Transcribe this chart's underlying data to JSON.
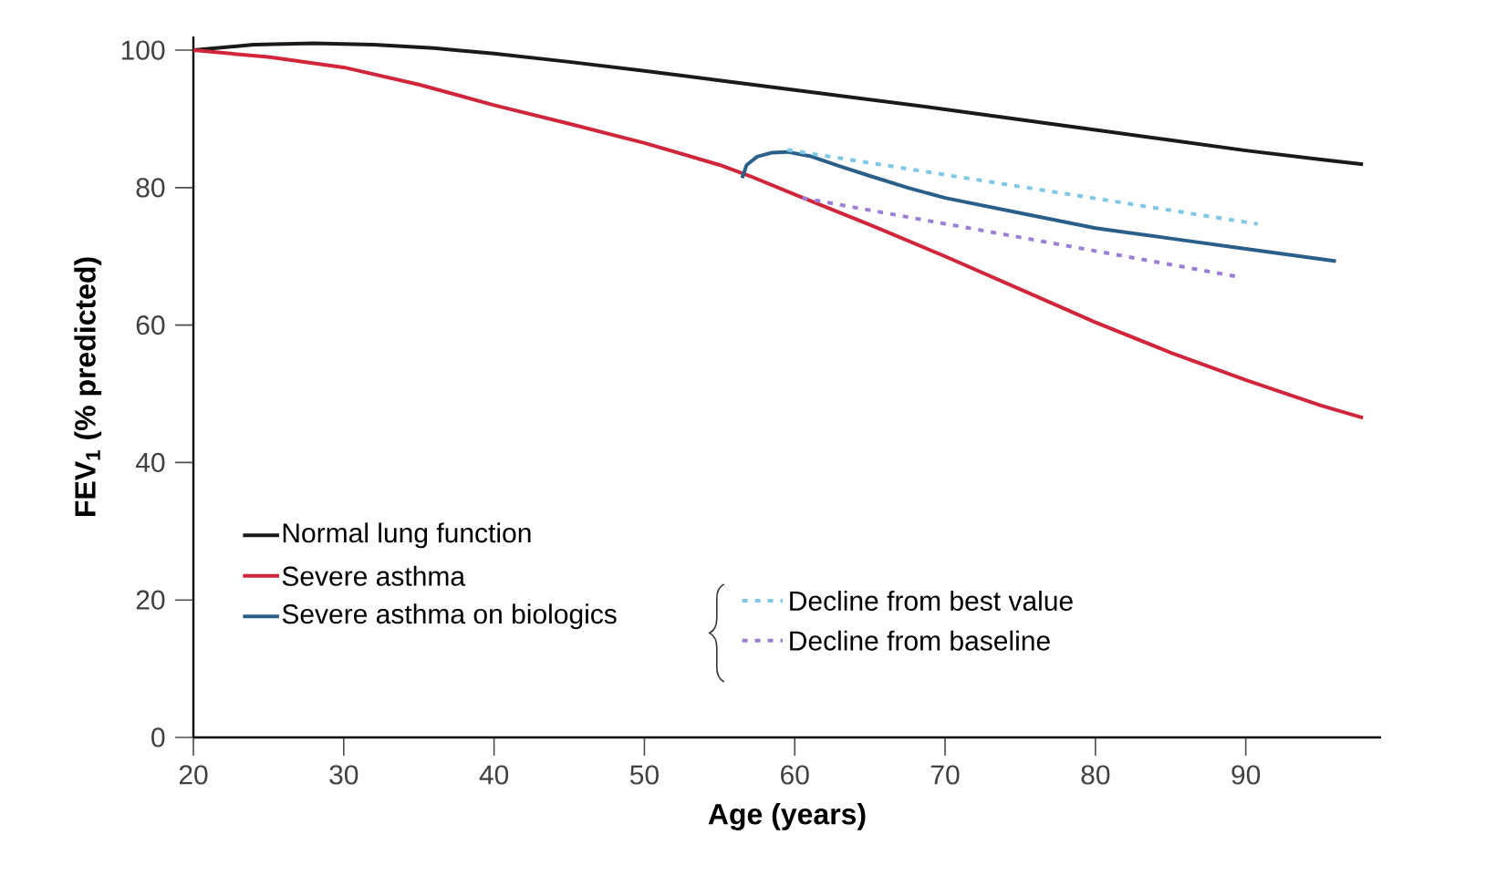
{
  "chart_data": {
    "type": "line",
    "xlabel": "Age (years)",
    "ylabel": "FEV$_{1}$ (% predicted)",
    "xlim": [
      20,
      99
    ],
    "ylim": [
      0,
      102
    ],
    "xticks": [
      20,
      30,
      40,
      50,
      60,
      70,
      80,
      90
    ],
    "yticks": [
      0,
      20,
      40,
      60,
      80,
      100
    ],
    "legend": "bottom left",
    "grid": false,
    "series": [
      {
        "name": "Normal lung function",
        "color": "#1a1a1a",
        "x": [
          20,
          24,
          28,
          32,
          36,
          40,
          45,
          50,
          55,
          60,
          65,
          70,
          75,
          80,
          85,
          90,
          95,
          97.8
        ],
        "values": [
          100,
          100.8,
          101,
          100.8,
          100.3,
          99.5,
          98.3,
          97,
          95.6,
          94.2,
          92.8,
          91.4,
          89.9,
          88.4,
          86.9,
          85.4,
          84.1,
          83.4
        ]
      },
      {
        "name": "Severe asthma",
        "color": "#d0253a",
        "x": [
          20,
          25,
          30,
          35,
          40,
          45,
          50,
          55,
          57,
          60,
          65,
          70,
          75,
          80,
          85,
          90,
          95,
          97.8
        ],
        "values": [
          100,
          99,
          97.5,
          95,
          92,
          89.3,
          86.5,
          83.3,
          81.7,
          79,
          74.6,
          70,
          65.2,
          60.4,
          56,
          52,
          48.3,
          46.5
        ]
      },
      {
        "name": "Severe asthma on biologics",
        "color": "#2a5f8a",
        "x": [
          56.5,
          56.8,
          57.5,
          58.5,
          59.5,
          61,
          63,
          65,
          67.5,
          70,
          75,
          80,
          85,
          90,
          93,
          96
        ],
        "values": [
          81.4,
          83.3,
          84.5,
          85.1,
          85.2,
          84.6,
          83.1,
          81.7,
          80,
          78.5,
          76.3,
          74.1,
          72.6,
          71.1,
          70.2,
          69.3
        ]
      },
      {
        "name": "Decline from best value",
        "color": "#7ec8e3",
        "line_style": "dotted",
        "x": [
          59.5,
          90.8
        ],
        "values": [
          85.5,
          74.7
        ]
      },
      {
        "name": "Decline from baseline",
        "color": "#9b7fd4",
        "line_style": "dotted",
        "x": [
          60.5,
          89.3
        ],
        "values": [
          78.5,
          67.1
        ]
      }
    ]
  }
}
